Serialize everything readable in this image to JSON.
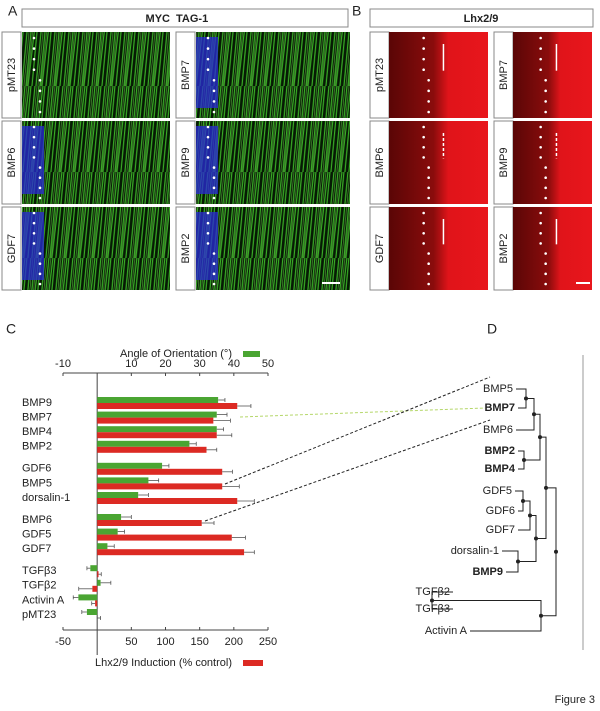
{
  "panel_labels": [
    "A",
    "B",
    "C",
    "D"
  ],
  "panel_a": {
    "header": [
      {
        "text": "MYC",
        "color": "#2b2bb0"
      },
      {
        "text": "TAG-1",
        "color": "#3aaa1e"
      }
    ],
    "labels": [
      {
        "text": "pMT23",
        "color": "#222222"
      },
      {
        "text": "BMP7",
        "color": "#2b2bb0"
      },
      {
        "text": "BMP6",
        "color": "#2b2bb0"
      },
      {
        "text": "BMP9",
        "color": "#2b2bb0"
      },
      {
        "text": "GDF7",
        "color": "#2b2bb0"
      },
      {
        "text": "BMP2",
        "color": "#2b2bb0"
      }
    ]
  },
  "panel_b": {
    "header": {
      "text": "Lhx2/9",
      "color": "#a01c3c"
    },
    "labels": [
      {
        "text": "pMT23",
        "color": "#222222"
      },
      {
        "text": "BMP7",
        "color": "#2b2bb0"
      },
      {
        "text": "BMP6",
        "color": "#2b2bb0"
      },
      {
        "text": "BMP9",
        "color": "#2b2bb0"
      },
      {
        "text": "GDF7",
        "color": "#2b2bb0"
      },
      {
        "text": "BMP2",
        "color": "#2b2bb0"
      }
    ]
  },
  "chart_data": {
    "type": "bar",
    "orientation": "horizontal",
    "categories": [
      "BMP9",
      "BMP7",
      "BMP4",
      "BMP2",
      "GDF6",
      "BMP5",
      "dorsalin-1",
      "BMP6",
      "GDF5",
      "GDF7",
      "TGFβ3",
      "TGFβ2",
      "Activin A",
      "pMT23"
    ],
    "series": [
      {
        "name": "Angle of Orientation (°)",
        "color": "#4aa532",
        "axis": "x2",
        "values": [
          35.4,
          35,
          35,
          27,
          19,
          15,
          12,
          7,
          6,
          3,
          -2,
          1,
          -5.5,
          -3
        ],
        "errors": [
          2,
          3,
          2,
          2,
          2,
          3,
          3,
          3,
          2,
          2,
          1,
          3,
          1.5,
          1.5
        ]
      },
      {
        "name": "Lhx2/9 Induction (% control)",
        "color": "#dc2a23",
        "axis": "x",
        "values": [
          205,
          170,
          175,
          160,
          183,
          183,
          205,
          153,
          197,
          215,
          2,
          -7,
          -3,
          0
        ],
        "errors": [
          20,
          25,
          22,
          15,
          15,
          25,
          25,
          18,
          20,
          15,
          4,
          20,
          5,
          5
        ]
      }
    ],
    "xlim": [
      -50,
      250
    ],
    "xticks": [
      -50,
      50,
      100,
      150,
      200,
      250
    ],
    "x2lim": [
      -10,
      50
    ],
    "x2ticks": [
      -10,
      10,
      20,
      30,
      40,
      50
    ]
  },
  "panel_d": {
    "leaves": [
      {
        "label": "BMP5"
      },
      {
        "label": "BMP7",
        "highlight": true
      },
      {
        "label": "BMP6"
      },
      {
        "label": "BMP2",
        "highlight": true
      },
      {
        "label": "BMP4",
        "highlight": true
      },
      {
        "label": "GDF5"
      },
      {
        "label": "GDF6"
      },
      {
        "label": "GDF7"
      },
      {
        "label": "dorsalin-1"
      },
      {
        "label": "BMP9",
        "highlight": true
      },
      {
        "label": "TGFβ2"
      },
      {
        "label": "TGFβ3"
      },
      {
        "label": "Activin A"
      }
    ],
    "highlight_color": "#8cc63f"
  },
  "figure_label": "Figure 3"
}
